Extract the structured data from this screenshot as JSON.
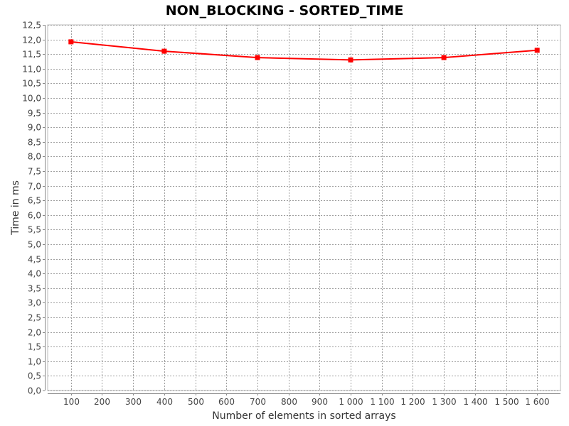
{
  "chart_data": {
    "type": "line",
    "title": "NON_BLOCKING - SORTED_TIME",
    "xlabel": "Number of elements in sorted arrays",
    "ylabel": "Time in ms",
    "x_ticks": [
      "100",
      "200",
      "300",
      "400",
      "500",
      "600",
      "700",
      "800",
      "900",
      "1 000",
      "1 100",
      "1 200",
      "1 300",
      "1 400",
      "1 500",
      "1 600"
    ],
    "y_ticks": [
      "0,0",
      "0,5",
      "1,0",
      "1,5",
      "2,0",
      "2,5",
      "3,0",
      "3,5",
      "4,0",
      "4,5",
      "5,0",
      "5,5",
      "6,0",
      "6,5",
      "7,0",
      "7,5",
      "8,0",
      "8,5",
      "9,0",
      "9,5",
      "10,0",
      "10,5",
      "11,0",
      "11,5",
      "12,0",
      "12,5"
    ],
    "xlim": [
      25,
      1675
    ],
    "ylim": [
      0,
      12.5
    ],
    "grid": true,
    "legend": "none",
    "series": [
      {
        "color": "#ff0000",
        "x": [
          100,
          400,
          700,
          1000,
          1300,
          1600
        ],
        "y": [
          11.92,
          11.6,
          11.38,
          11.3,
          11.38,
          11.63
        ]
      }
    ]
  }
}
